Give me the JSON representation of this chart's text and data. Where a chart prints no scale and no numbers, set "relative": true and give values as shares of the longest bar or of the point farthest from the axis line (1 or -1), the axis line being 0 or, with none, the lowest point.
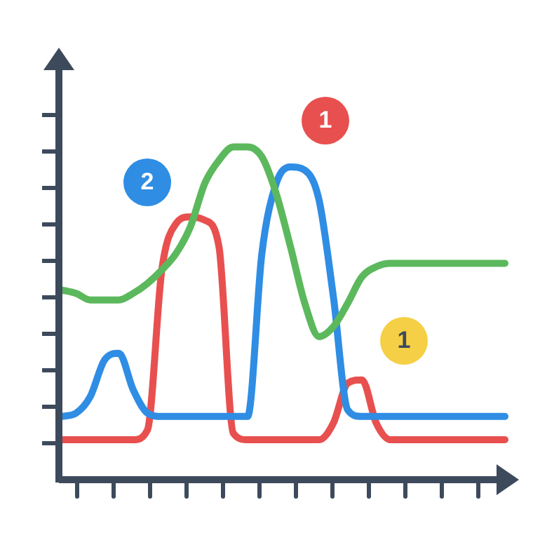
{
  "chart_data": {
    "type": "line",
    "relative": true,
    "legend": false,
    "marker": "none",
    "categories": [
      null,
      null,
      null,
      null,
      null,
      null,
      null,
      null,
      null,
      null,
      null,
      null,
      null,
      null,
      null,
      null,
      null,
      null,
      null,
      null,
      null,
      null,
      null,
      null,
      null,
      null,
      null,
      null,
      null,
      null,
      null,
      null
    ],
    "series": [
      {
        "color": "#5cb85c",
        "values": [
          0.57,
          0.56,
          0.54,
          0.54,
          0.54,
          0.56,
          0.59,
          0.63,
          0.68,
          0.76,
          0.89,
          0.96,
          1.0,
          1.0,
          0.97,
          0.86,
          0.7,
          0.53,
          0.43,
          0.46,
          0.53,
          0.61,
          0.64,
          0.65,
          0.65,
          0.65,
          0.65,
          0.65,
          0.65,
          0.65,
          0.65,
          0.65
        ]
      },
      {
        "color": "#2f8de4",
        "values": [
          0.19,
          0.2,
          0.25,
          0.36,
          0.38,
          0.27,
          0.2,
          0.19,
          0.19,
          0.19,
          0.19,
          0.19,
          0.19,
          0.19,
          0.68,
          0.89,
          0.94,
          0.93,
          0.84,
          0.55,
          0.21,
          0.19,
          0.19,
          0.19,
          0.19,
          0.19,
          0.19,
          0.19,
          0.19,
          0.19,
          0.19,
          0.19
        ]
      },
      {
        "color": "#e8504f",
        "values": [
          0.12,
          0.12,
          0.12,
          0.12,
          0.12,
          0.12,
          0.15,
          0.63,
          0.77,
          0.79,
          0.78,
          0.7,
          0.14,
          0.12,
          0.12,
          0.12,
          0.12,
          0.12,
          0.12,
          0.17,
          0.29,
          0.3,
          0.17,
          0.12,
          0.12,
          0.12,
          0.12,
          0.12,
          0.12,
          0.12,
          0.12,
          0.12
        ]
      }
    ],
    "annotations": [
      "1",
      "2",
      "1"
    ]
  }
}
